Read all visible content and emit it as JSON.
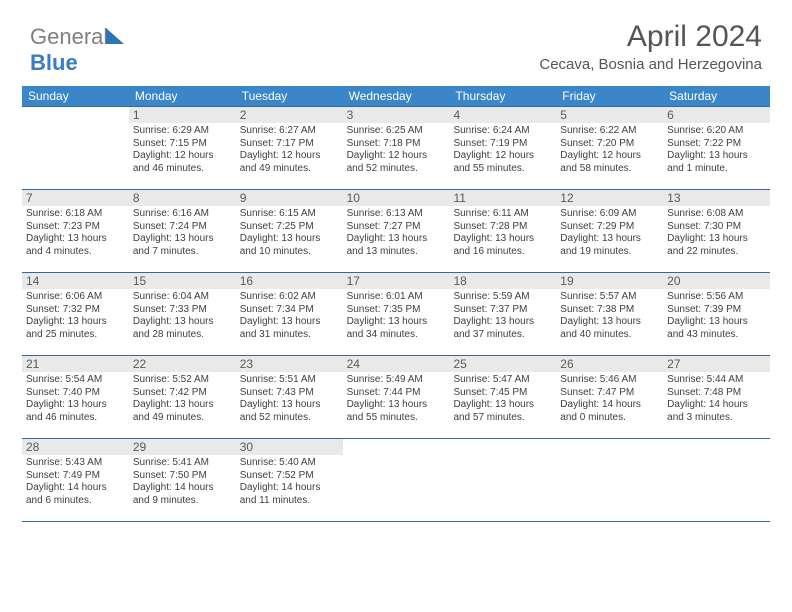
{
  "logo": {
    "part1": "General",
    "part2": "Blue"
  },
  "title": "April 2024",
  "subtitle": "Cecava, Bosnia and Herzegovina",
  "colors": {
    "header_bg": "#3a86c8",
    "header_text": "#ffffff",
    "daynum_bg": "#e9e9e9",
    "border": "#2f6aa6",
    "text": "#404040",
    "logo_gray": "#808080",
    "logo_blue": "#3a7cc4"
  },
  "typography": {
    "title_fontsize": 30,
    "subtitle_fontsize": 15,
    "dayhead_fontsize": 12,
    "daynum_fontsize": 12,
    "body_fontsize": 10
  },
  "day_headers": [
    "Sunday",
    "Monday",
    "Tuesday",
    "Wednesday",
    "Thursday",
    "Friday",
    "Saturday"
  ],
  "weeks": [
    [
      {
        "num": "",
        "lines": []
      },
      {
        "num": "1",
        "lines": [
          "Sunrise: 6:29 AM",
          "Sunset: 7:15 PM",
          "Daylight: 12 hours",
          "and 46 minutes."
        ]
      },
      {
        "num": "2",
        "lines": [
          "Sunrise: 6:27 AM",
          "Sunset: 7:17 PM",
          "Daylight: 12 hours",
          "and 49 minutes."
        ]
      },
      {
        "num": "3",
        "lines": [
          "Sunrise: 6:25 AM",
          "Sunset: 7:18 PM",
          "Daylight: 12 hours",
          "and 52 minutes."
        ]
      },
      {
        "num": "4",
        "lines": [
          "Sunrise: 6:24 AM",
          "Sunset: 7:19 PM",
          "Daylight: 12 hours",
          "and 55 minutes."
        ]
      },
      {
        "num": "5",
        "lines": [
          "Sunrise: 6:22 AM",
          "Sunset: 7:20 PM",
          "Daylight: 12 hours",
          "and 58 minutes."
        ]
      },
      {
        "num": "6",
        "lines": [
          "Sunrise: 6:20 AM",
          "Sunset: 7:22 PM",
          "Daylight: 13 hours",
          "and 1 minute."
        ]
      }
    ],
    [
      {
        "num": "7",
        "lines": [
          "Sunrise: 6:18 AM",
          "Sunset: 7:23 PM",
          "Daylight: 13 hours",
          "and 4 minutes."
        ]
      },
      {
        "num": "8",
        "lines": [
          "Sunrise: 6:16 AM",
          "Sunset: 7:24 PM",
          "Daylight: 13 hours",
          "and 7 minutes."
        ]
      },
      {
        "num": "9",
        "lines": [
          "Sunrise: 6:15 AM",
          "Sunset: 7:25 PM",
          "Daylight: 13 hours",
          "and 10 minutes."
        ]
      },
      {
        "num": "10",
        "lines": [
          "Sunrise: 6:13 AM",
          "Sunset: 7:27 PM",
          "Daylight: 13 hours",
          "and 13 minutes."
        ]
      },
      {
        "num": "11",
        "lines": [
          "Sunrise: 6:11 AM",
          "Sunset: 7:28 PM",
          "Daylight: 13 hours",
          "and 16 minutes."
        ]
      },
      {
        "num": "12",
        "lines": [
          "Sunrise: 6:09 AM",
          "Sunset: 7:29 PM",
          "Daylight: 13 hours",
          "and 19 minutes."
        ]
      },
      {
        "num": "13",
        "lines": [
          "Sunrise: 6:08 AM",
          "Sunset: 7:30 PM",
          "Daylight: 13 hours",
          "and 22 minutes."
        ]
      }
    ],
    [
      {
        "num": "14",
        "lines": [
          "Sunrise: 6:06 AM",
          "Sunset: 7:32 PM",
          "Daylight: 13 hours",
          "and 25 minutes."
        ]
      },
      {
        "num": "15",
        "lines": [
          "Sunrise: 6:04 AM",
          "Sunset: 7:33 PM",
          "Daylight: 13 hours",
          "and 28 minutes."
        ]
      },
      {
        "num": "16",
        "lines": [
          "Sunrise: 6:02 AM",
          "Sunset: 7:34 PM",
          "Daylight: 13 hours",
          "and 31 minutes."
        ]
      },
      {
        "num": "17",
        "lines": [
          "Sunrise: 6:01 AM",
          "Sunset: 7:35 PM",
          "Daylight: 13 hours",
          "and 34 minutes."
        ]
      },
      {
        "num": "18",
        "lines": [
          "Sunrise: 5:59 AM",
          "Sunset: 7:37 PM",
          "Daylight: 13 hours",
          "and 37 minutes."
        ]
      },
      {
        "num": "19",
        "lines": [
          "Sunrise: 5:57 AM",
          "Sunset: 7:38 PM",
          "Daylight: 13 hours",
          "and 40 minutes."
        ]
      },
      {
        "num": "20",
        "lines": [
          "Sunrise: 5:56 AM",
          "Sunset: 7:39 PM",
          "Daylight: 13 hours",
          "and 43 minutes."
        ]
      }
    ],
    [
      {
        "num": "21",
        "lines": [
          "Sunrise: 5:54 AM",
          "Sunset: 7:40 PM",
          "Daylight: 13 hours",
          "and 46 minutes."
        ]
      },
      {
        "num": "22",
        "lines": [
          "Sunrise: 5:52 AM",
          "Sunset: 7:42 PM",
          "Daylight: 13 hours",
          "and 49 minutes."
        ]
      },
      {
        "num": "23",
        "lines": [
          "Sunrise: 5:51 AM",
          "Sunset: 7:43 PM",
          "Daylight: 13 hours",
          "and 52 minutes."
        ]
      },
      {
        "num": "24",
        "lines": [
          "Sunrise: 5:49 AM",
          "Sunset: 7:44 PM",
          "Daylight: 13 hours",
          "and 55 minutes."
        ]
      },
      {
        "num": "25",
        "lines": [
          "Sunrise: 5:47 AM",
          "Sunset: 7:45 PM",
          "Daylight: 13 hours",
          "and 57 minutes."
        ]
      },
      {
        "num": "26",
        "lines": [
          "Sunrise: 5:46 AM",
          "Sunset: 7:47 PM",
          "Daylight: 14 hours",
          "and 0 minutes."
        ]
      },
      {
        "num": "27",
        "lines": [
          "Sunrise: 5:44 AM",
          "Sunset: 7:48 PM",
          "Daylight: 14 hours",
          "and 3 minutes."
        ]
      }
    ],
    [
      {
        "num": "28",
        "lines": [
          "Sunrise: 5:43 AM",
          "Sunset: 7:49 PM",
          "Daylight: 14 hours",
          "and 6 minutes."
        ]
      },
      {
        "num": "29",
        "lines": [
          "Sunrise: 5:41 AM",
          "Sunset: 7:50 PM",
          "Daylight: 14 hours",
          "and 9 minutes."
        ]
      },
      {
        "num": "30",
        "lines": [
          "Sunrise: 5:40 AM",
          "Sunset: 7:52 PM",
          "Daylight: 14 hours",
          "and 11 minutes."
        ]
      },
      {
        "num": "",
        "lines": []
      },
      {
        "num": "",
        "lines": []
      },
      {
        "num": "",
        "lines": []
      },
      {
        "num": "",
        "lines": []
      }
    ]
  ]
}
